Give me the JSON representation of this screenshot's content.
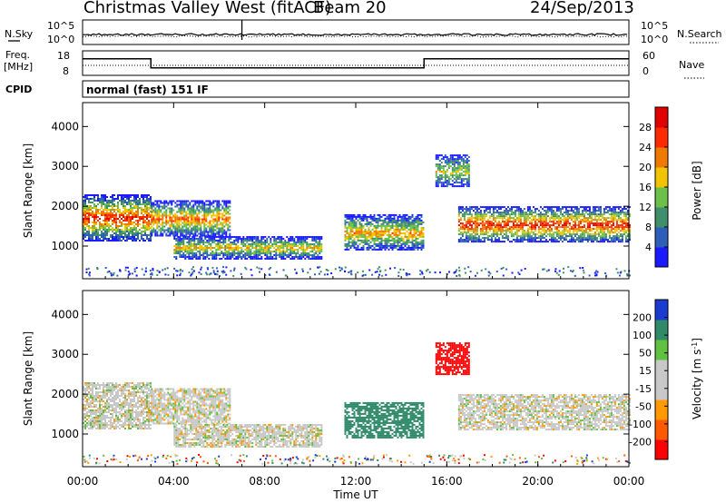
{
  "header": {
    "station": "Christmas Valley West (fitACF)",
    "beam": "Beam 20",
    "date": "24/Sep/2013"
  },
  "noise_panel": {
    "left_label": "N.Sky",
    "right_label": "N.Search",
    "left_ticks": [
      "10^5",
      "10^0"
    ],
    "right_ticks": [
      "10^5",
      "10^0"
    ]
  },
  "freq_panel": {
    "left_label_top": "Freq.",
    "left_label_bottom": "[MHz]",
    "left_ticks": [
      "18",
      "8"
    ],
    "right_label": "Nave",
    "right_ticks": [
      "60",
      "0"
    ],
    "freq_steps": [
      {
        "from_hour": 0,
        "to_hour": 3,
        "mhz": 14.6
      },
      {
        "from_hour": 3,
        "to_hour": 15,
        "mhz": 10.8
      },
      {
        "from_hour": 15,
        "to_hour": 24,
        "mhz": 14.6
      }
    ]
  },
  "cpid": {
    "label": "CPID",
    "value": "normal (fast) 151 IF"
  },
  "x_axis": {
    "label": "Time UT",
    "ticks": [
      "00:00",
      "04:00",
      "08:00",
      "12:00",
      "16:00",
      "20:00",
      "00:00"
    ],
    "range_hours": [
      0,
      24
    ]
  },
  "chart_data": [
    {
      "type": "heatmap",
      "panel": "power",
      "ylabel": "Slant Range [km]",
      "yticks": [
        "1000",
        "2000",
        "3000",
        "4000"
      ],
      "ylim": [
        180,
        4600
      ],
      "colorbar": {
        "label": "Power [dB]",
        "ticks": [
          "4",
          "8",
          "12",
          "16",
          "20",
          "24",
          "28"
        ],
        "range": [
          0,
          30
        ],
        "colors": [
          "#1a1aff",
          "#2e5fb8",
          "#3f8f6a",
          "#6cc04a",
          "#f2c400",
          "#f07a00",
          "#ff2a00",
          "#e00000"
        ]
      },
      "regions": [
        {
          "t0": 0.0,
          "t1": 3.0,
          "r0": 1150,
          "r1": 2300,
          "peak_db": 26
        },
        {
          "t0": 3.0,
          "t1": 6.5,
          "r0": 1250,
          "r1": 2150,
          "peak_db": 22
        },
        {
          "t0": 4.0,
          "t1": 10.5,
          "r0": 700,
          "r1": 1250,
          "peak_db": 18
        },
        {
          "t0": 11.5,
          "t1": 15.0,
          "r0": 900,
          "r1": 1800,
          "peak_db": 20
        },
        {
          "t0": 15.5,
          "t1": 17.0,
          "r0": 2500,
          "r1": 3300,
          "peak_db": 16
        },
        {
          "t0": 16.5,
          "t1": 24.0,
          "r0": 1100,
          "r1": 2000,
          "peak_db": 26
        }
      ]
    },
    {
      "type": "heatmap",
      "panel": "velocity",
      "ylabel": "Slant Range [km]",
      "yticks": [
        "1000",
        "2000",
        "3000",
        "4000"
      ],
      "ylim": [
        180,
        4600
      ],
      "colorbar": {
        "label": "Velocity [m s^-1]",
        "ticks": [
          "200",
          "100",
          "50",
          "15",
          "-15",
          "-50",
          "-100",
          "-200"
        ],
        "range": [
          -250,
          250
        ],
        "colors": [
          "#ff0000",
          "#ff5a00",
          "#ff9a00",
          "#c8c8c8",
          "#c8c8c8",
          "#60c040",
          "#2f8a6a",
          "#1a3ad0"
        ]
      },
      "regions": [
        {
          "t0": 0.0,
          "t1": 3.0,
          "r0": 1150,
          "r1": 2300,
          "velocity": 0
        },
        {
          "t0": 3.0,
          "t1": 6.5,
          "r0": 1250,
          "r1": 2150,
          "velocity": 0
        },
        {
          "t0": 4.0,
          "t1": 10.5,
          "r0": 700,
          "r1": 1250,
          "velocity": 0
        },
        {
          "t0": 11.5,
          "t1": 15.0,
          "r0": 900,
          "r1": 1800,
          "velocity": 80
        },
        {
          "t0": 15.5,
          "t1": 17.0,
          "r0": 2500,
          "r1": 3300,
          "velocity": -220
        },
        {
          "t0": 16.5,
          "t1": 24.0,
          "r0": 1100,
          "r1": 2000,
          "velocity": 0
        }
      ]
    }
  ],
  "colors": {
    "axis": "#000000",
    "background": "#ffffff"
  }
}
